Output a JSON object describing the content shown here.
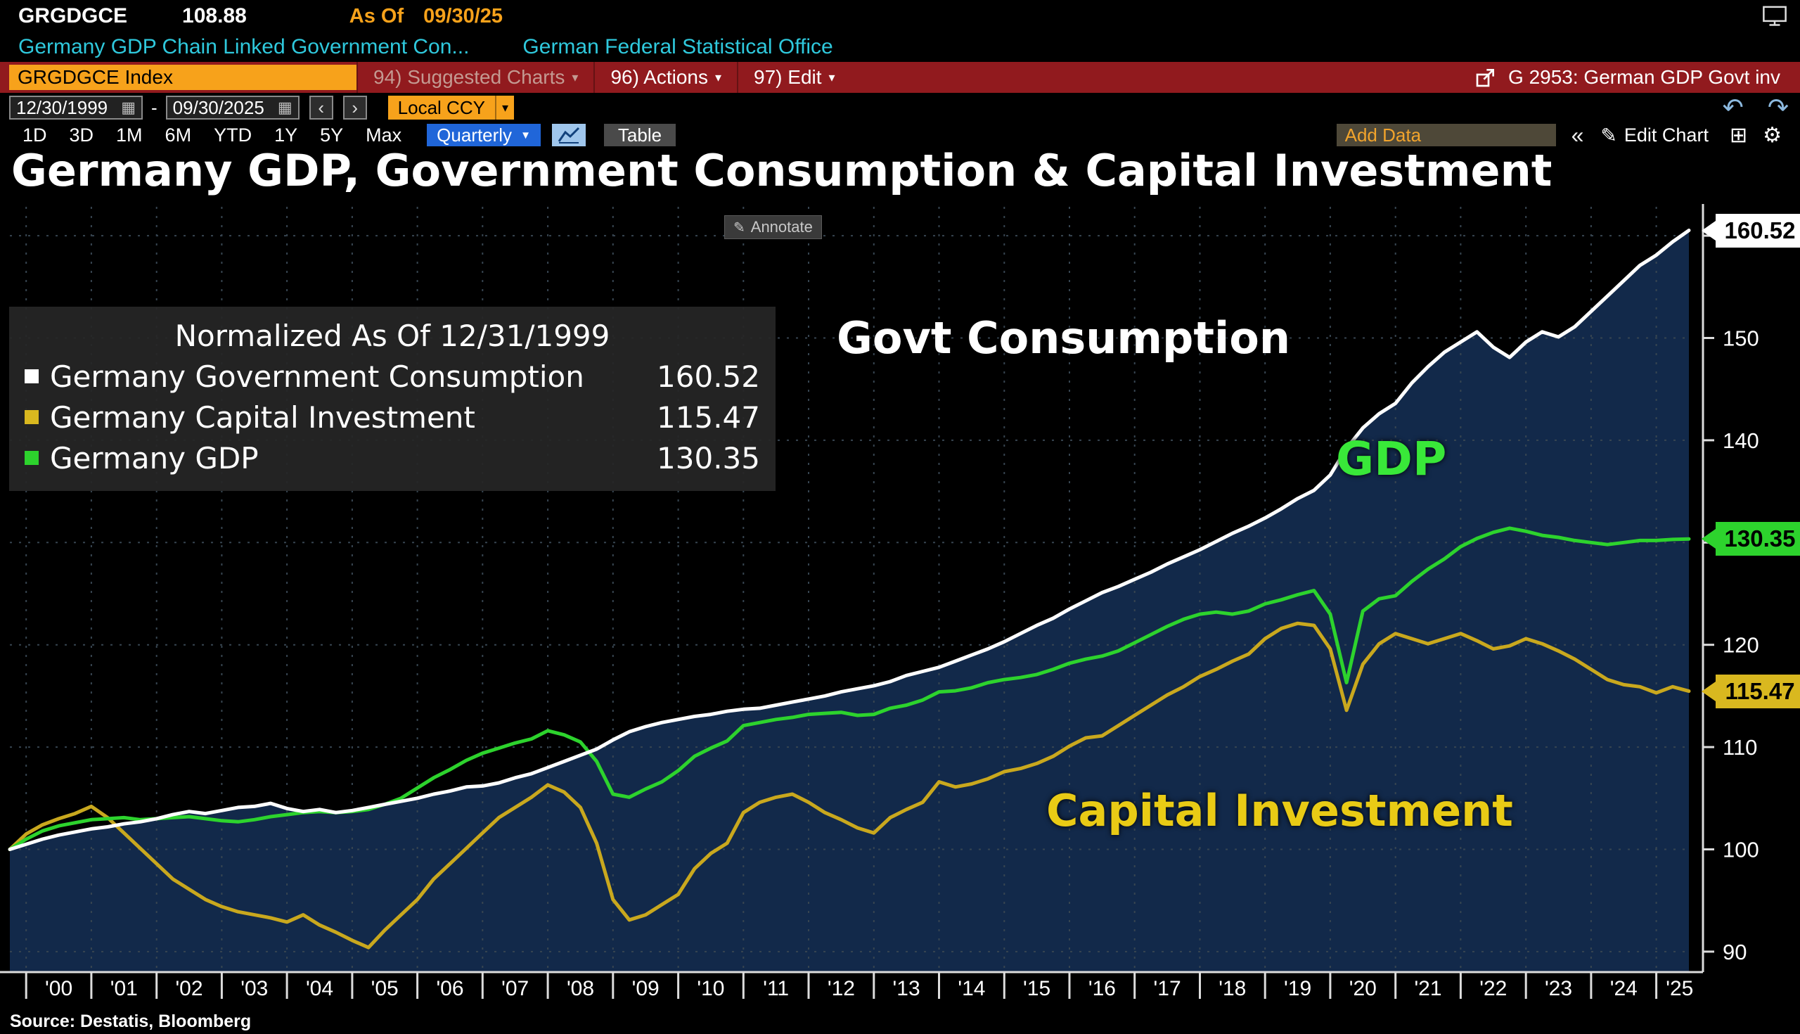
{
  "top_bar": {
    "ticker": "GRGDGCE",
    "last_value": "108.88",
    "as_of_label": "As Of",
    "as_of_date": "09/30/25",
    "description": "Germany GDP Chain Linked Government Con...",
    "source_name": "German Federal Statistical Office"
  },
  "command_bar": {
    "security_field": "GRGDGCE Index",
    "suggested_charts": "94) Suggested Charts",
    "actions": "96) Actions",
    "edit": "97) Edit",
    "chart_ref": "G 2953: German GDP Govt inv"
  },
  "toolbar": {
    "date_from": "12/30/1999",
    "date_to": "09/30/2025",
    "range_separator": "-",
    "currency": "Local CCY",
    "periods": [
      "1D",
      "3D",
      "1M",
      "6M",
      "YTD",
      "1Y",
      "5Y",
      "Max"
    ],
    "frequency": "Quarterly",
    "table_label": "Table",
    "add_data_placeholder": "Add Data",
    "edit_chart_label": "Edit Chart"
  },
  "icons": {
    "dropdown_caret": "▾",
    "frequency_caret": "▼",
    "calendar": "▦",
    "prev": "‹",
    "next": "›",
    "undo": "↶",
    "redo": "↷",
    "collapse": "«",
    "pencil": "✎",
    "grid": "⊞",
    "gear": "⚙"
  },
  "chart": {
    "title": "Germany GDP, Government Consumption & Capital Investment",
    "annotate_label": "Annotate",
    "legend": {
      "title": "Normalized As Of 12/31/1999",
      "items": [
        {
          "label": "Germany Government Consumption",
          "value": "160.52",
          "color": "#ffffff"
        },
        {
          "label": "Germany Capital Investment",
          "value": "115.47",
          "color": "#d9b81f"
        },
        {
          "label": "Germany GDP",
          "value": "130.35",
          "color": "#2dd32d"
        }
      ]
    },
    "overlay_labels": {
      "govt": "Govt Consumption",
      "gdp": "GDP",
      "capital": "Capital Investment"
    },
    "badges": [
      {
        "text": "160.52",
        "value": 160.52,
        "bg": "#ffffff"
      },
      {
        "text": "130.35",
        "value": 130.35,
        "bg": "#2dd32d"
      },
      {
        "text": "115.47",
        "value": 115.47,
        "bg": "#d9b81f"
      }
    ],
    "source": "Source: Destatis, Bloomberg"
  },
  "chart_data": {
    "type": "line",
    "title": "Germany GDP, Government Consumption & Capital Investment",
    "normalized_note": "Normalized As Of 12/31/1999",
    "x_start": "1999-Q4",
    "x_step_quarters": 1,
    "x_tick_labels": [
      "'00",
      "'01",
      "'02",
      "'03",
      "'04",
      "'05",
      "'06",
      "'07",
      "'08",
      "'09",
      "'10",
      "'11",
      "'12",
      "'13",
      "'14",
      "'15",
      "'16",
      "'17",
      "'18",
      "'19",
      "'20",
      "'21",
      "'22",
      "'23",
      "'24",
      "'25"
    ],
    "y_ticks": [
      90,
      100,
      110,
      120,
      130,
      140,
      150,
      160
    ],
    "y_tick_labels_visible": [
      90,
      100,
      110,
      120,
      140,
      150
    ],
    "ylim": [
      88,
      162
    ],
    "grid_color": "#374551",
    "area_fill": "#12294a",
    "legend_position": "top-left",
    "series": [
      {
        "name": "Germany Government Consumption",
        "color": "#ffffff",
        "last": 160.52,
        "values": [
          100,
          100.5,
          101,
          101.4,
          101.7,
          102,
          102.2,
          102.5,
          102.7,
          103,
          103.4,
          103.7,
          103.5,
          103.8,
          104.1,
          104.2,
          104.5,
          104,
          103.7,
          103.9,
          103.6,
          103.8,
          104.1,
          104.4,
          104.7,
          105,
          105.4,
          105.7,
          106.1,
          106.2,
          106.5,
          107,
          107.4,
          108,
          108.6,
          109.2,
          109.8,
          110.7,
          111.5,
          112,
          112.4,
          112.7,
          113,
          113.2,
          113.5,
          113.7,
          113.8,
          114.1,
          114.4,
          114.7,
          115,
          115.4,
          115.7,
          116,
          116.4,
          117,
          117.4,
          117.8,
          118.4,
          119,
          119.6,
          120.3,
          121.1,
          121.9,
          122.6,
          123.5,
          124.3,
          125.1,
          125.7,
          126.4,
          127.1,
          127.9,
          128.6,
          129.3,
          130.1,
          130.9,
          131.6,
          132.4,
          133.3,
          134.3,
          135.1,
          136.6,
          139.2,
          141.2,
          142.6,
          143.6,
          145.6,
          147.2,
          148.6,
          149.6,
          150.6,
          149.1,
          148.1,
          149.6,
          150.6,
          150.1,
          151.1,
          152.6,
          154.1,
          155.6,
          157.1,
          158.1,
          159.4,
          160.52
        ]
      },
      {
        "name": "Germany Capital Investment",
        "color": "#c9a81e",
        "last": 115.47,
        "values": [
          100,
          101.5,
          102.4,
          103,
          103.5,
          104.2,
          103.1,
          101.6,
          100.1,
          98.6,
          97.1,
          96.1,
          95.1,
          94.4,
          93.9,
          93.6,
          93.3,
          92.9,
          93.6,
          92.6,
          91.9,
          91.1,
          90.4,
          92.1,
          93.6,
          95.1,
          97.1,
          98.6,
          100.1,
          101.6,
          103.1,
          104.1,
          105.1,
          106.3,
          105.6,
          104.1,
          100.6,
          95.1,
          93.1,
          93.6,
          94.6,
          95.6,
          98.1,
          99.6,
          100.6,
          103.6,
          104.6,
          105.1,
          105.4,
          104.6,
          103.6,
          102.9,
          102.1,
          101.6,
          103.1,
          103.9,
          104.6,
          106.6,
          106.1,
          106.4,
          106.9,
          107.6,
          107.9,
          108.4,
          109.1,
          110.1,
          110.9,
          111.1,
          112.1,
          113.1,
          114.1,
          115.1,
          115.9,
          116.9,
          117.6,
          118.4,
          119.1,
          120.6,
          121.6,
          122.1,
          121.9,
          119.6,
          113.6,
          118.1,
          120.1,
          121.1,
          120.6,
          120.1,
          120.6,
          121.1,
          120.4,
          119.6,
          119.9,
          120.6,
          120.1,
          119.4,
          118.6,
          117.6,
          116.6,
          116.1,
          115.9,
          115.3,
          115.9,
          115.47
        ]
      },
      {
        "name": "Germany GDP",
        "color": "#2dd32d",
        "last": 130.35,
        "values": [
          100,
          101,
          101.8,
          102.3,
          102.6,
          102.9,
          103,
          103.1,
          102.9,
          103,
          103.1,
          103.2,
          103,
          102.8,
          102.7,
          102.9,
          103.2,
          103.4,
          103.6,
          103.7,
          103.6,
          103.7,
          103.9,
          104.4,
          105,
          106,
          107,
          107.8,
          108.7,
          109.4,
          109.9,
          110.4,
          110.8,
          111.6,
          111.2,
          110.5,
          108.6,
          105.4,
          105.1,
          105.9,
          106.6,
          107.7,
          109.1,
          109.9,
          110.6,
          112.1,
          112.4,
          112.7,
          112.9,
          113.2,
          113.3,
          113.4,
          113.1,
          113.2,
          113.8,
          114.1,
          114.6,
          115.4,
          115.5,
          115.8,
          116.3,
          116.6,
          116.8,
          117.1,
          117.6,
          118.2,
          118.6,
          118.9,
          119.4,
          120.2,
          121,
          121.8,
          122.5,
          123,
          123.2,
          123,
          123.3,
          124,
          124.4,
          124.9,
          125.3,
          123,
          116.3,
          123.3,
          124.5,
          124.8,
          126.2,
          127.4,
          128.4,
          129.6,
          130.4,
          131,
          131.4,
          131.1,
          130.7,
          130.5,
          130.2,
          130,
          129.8,
          130,
          130.2,
          130.2,
          130.3,
          130.35
        ]
      }
    ]
  }
}
